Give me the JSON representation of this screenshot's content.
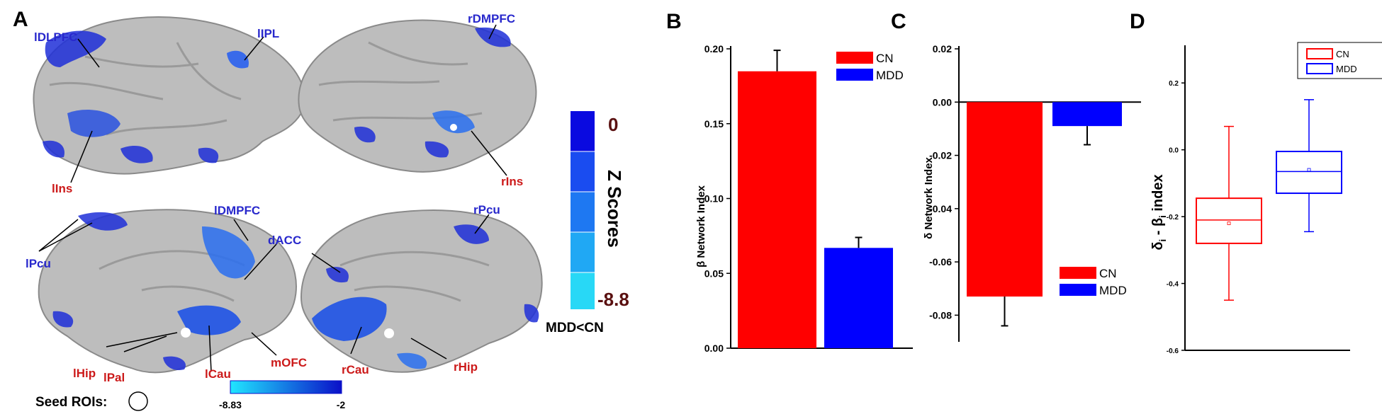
{
  "panels": {
    "a": "A",
    "b": "B",
    "c": "C",
    "d": "D"
  },
  "brain_labels": {
    "ldlpfc": "lDLPFC",
    "lipl": "lIPL",
    "lins": "lIns",
    "rdmpfc": "rDMPFC",
    "rins": "rIns",
    "ldmpfc": "lDMPFC",
    "lpcu": "lPcu",
    "dacc": "dACC",
    "rpcu": "rPcu",
    "lhip": "lHip",
    "lpal": "lPal",
    "lcau": "lCau",
    "mofc": "mOFC",
    "rcau": "rCau",
    "rhip": "rHip"
  },
  "colorbar_vertical": {
    "title": "Z Scores",
    "max_label": "0",
    "min_label": "-8.8",
    "contrast": "MDD<CN",
    "colors": [
      "#0a0ae0",
      "#1a4cf0",
      "#1e78f2",
      "#20a8f4",
      "#28d8f6"
    ]
  },
  "colorbar_horizontal": {
    "min_label": "-8.83",
    "max_label": "-2",
    "color_low": "#20e6ff",
    "color_high": "#0a10c8"
  },
  "seed_label": "Seed ROIs:",
  "colors": {
    "cn": "#ff0000",
    "mdd": "#0000ff",
    "brain_gray": "#bdbdbd",
    "label_blue": "#2828cc",
    "label_red": "#cc1a1a"
  },
  "chart_data": [
    {
      "panel": "B",
      "type": "bar",
      "categories": [
        "CN",
        "MDD"
      ],
      "values": [
        0.185,
        0.067
      ],
      "errors": [
        0.014,
        0.007
      ],
      "ylabel": "β Network Index",
      "ylim": [
        0.0,
        0.2
      ],
      "yticks": [
        "0.00",
        "0.05",
        "0.10",
        "0.15",
        "0.20"
      ],
      "legend": [
        "CN",
        "MDD"
      ],
      "legend_position": "top-right"
    },
    {
      "panel": "C",
      "type": "bar",
      "categories": [
        "CN",
        "MDD"
      ],
      "values": [
        -0.073,
        -0.009
      ],
      "errors": [
        0.011,
        0.007
      ],
      "ylabel": "δ Network Index",
      "ylim": [
        -0.09,
        0.02
      ],
      "yticks": [
        "0.02",
        "0.00",
        "-0.02",
        "-0.04",
        "-0.06",
        "-0.08"
      ],
      "legend": [
        "CN",
        "MDD"
      ],
      "legend_position": "bottom-right"
    },
    {
      "panel": "D",
      "type": "box",
      "ylabel_main": "δ",
      "ylabel_sub1": "i",
      "ylabel_mid": " - β",
      "ylabel_sub2": "i",
      "ylabel_tail": " index",
      "ylim": [
        -0.6,
        0.3
      ],
      "yticks": [
        "0.2",
        "0.0",
        "-0.2",
        "-0.4",
        "-0.6"
      ],
      "legend": [
        "CN",
        "MDD"
      ],
      "legend_position": "top-right",
      "series": [
        {
          "name": "CN",
          "min": -0.45,
          "q1": -0.28,
          "median": -0.21,
          "mean": -0.22,
          "q3": -0.145,
          "max": 0.07
        },
        {
          "name": "MDD",
          "min": -0.245,
          "q1": -0.13,
          "median": -0.065,
          "mean": -0.06,
          "q3": -0.005,
          "max": 0.15
        }
      ]
    }
  ]
}
